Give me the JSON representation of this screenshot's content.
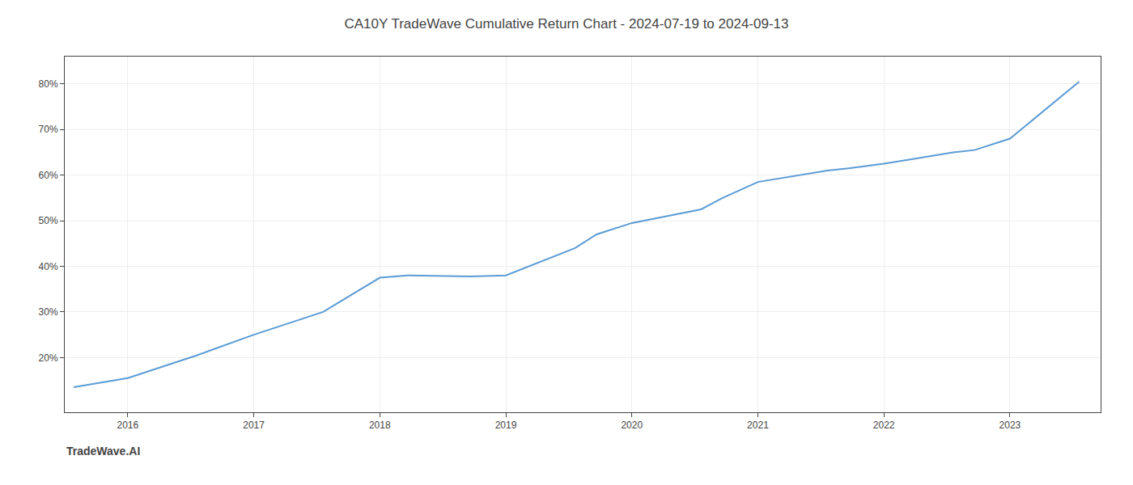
{
  "chart_data": {
    "type": "line",
    "title": "CA10Y TradeWave Cumulative Return Chart - 2024-07-19 to 2024-09-13",
    "annotations": [
      "TradeWave.AI"
    ],
    "x": [
      2015.57,
      2016.0,
      2016.55,
      2017.0,
      2017.55,
      2018.0,
      2018.22,
      2018.55,
      2018.72,
      2019.0,
      2019.55,
      2019.72,
      2020.0,
      2020.55,
      2020.72,
      2021.0,
      2021.22,
      2021.55,
      2021.72,
      2022.0,
      2022.22,
      2022.55,
      2022.72,
      2023.0,
      2023.55
    ],
    "values": [
      13.5,
      15.5,
      20.5,
      25.0,
      30.0,
      37.5,
      38.0,
      37.8,
      37.8,
      38.0,
      44.0,
      47.0,
      49.5,
      52.5,
      55.0,
      58.5,
      59.5,
      61.0,
      61.5,
      62.5,
      63.5,
      65.0,
      65.5,
      68.0,
      80.5
    ],
    "color": "#5b9bd5",
    "xlim": [
      2015.5,
      2023.72
    ],
    "ylim": [
      8,
      86
    ],
    "xticks": [
      2016,
      2017,
      2018,
      2019,
      2020,
      2021,
      2022,
      2023
    ],
    "yticks": [
      {
        "value": 20,
        "label": "20%"
      },
      {
        "value": 30,
        "label": "30%"
      },
      {
        "value": 40,
        "label": "40%"
      },
      {
        "value": 50,
        "label": "50%"
      },
      {
        "value": 60,
        "label": "60%"
      },
      {
        "value": 70,
        "label": "70%"
      },
      {
        "value": 80,
        "label": "80%"
      }
    ],
    "grid": true
  }
}
